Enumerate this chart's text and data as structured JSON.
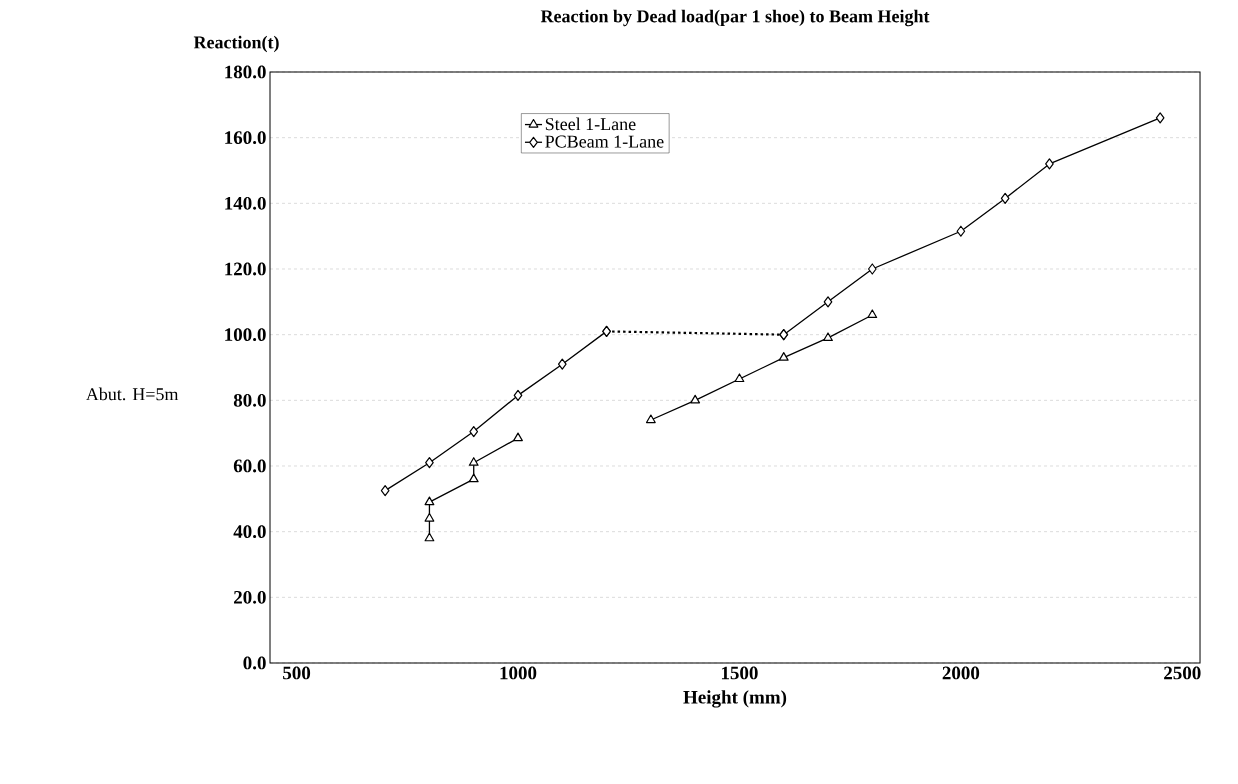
{
  "chart_data": {
    "type": "line",
    "title": "Reaction by Dead load(par 1 shoe) to Beam Height",
    "xlabel": "Height (mm)",
    "ylabel": "Reaction(t)",
    "annotations": [
      "Abut. H=5m"
    ],
    "series": [
      {
        "type": "line",
        "color": "#000000",
        "marker": "diamond",
        "line_style": "dotted",
        "x": [
          1200,
          1600
        ],
        "values": [
          101,
          100
        ]
      },
      {
        "name": "Steel 1-Lane",
        "color": "#000000",
        "marker": "triangle",
        "x": [
          800,
          800,
          800,
          900,
          900,
          1000,
          1150,
          1300,
          1400,
          1500,
          1600,
          1700,
          1800
        ],
        "values": [
          38,
          44,
          49,
          56,
          61,
          68.5,
          null,
          74,
          80,
          86.5,
          93,
          99,
          106
        ]
      },
      {
        "name": "PCBeam 1-Lane",
        "color": "#000000",
        "marker": "diamond",
        "x": [
          700,
          800,
          900,
          1000,
          1100,
          1200,
          1400,
          1600,
          1700,
          1800,
          2000,
          2100,
          2200,
          2450
        ],
        "values": [
          52.5,
          61,
          70.5,
          81.5,
          91,
          101,
          null,
          100,
          110,
          120,
          131.5,
          141.5,
          152,
          166
        ]
      }
    ],
    "xlim": [
      440,
      2540
    ],
    "xticks": [
      500,
      1000,
      1500,
      2000,
      2500
    ],
    "ylim": [
      0,
      180
    ],
    "yticks": [
      {
        "value": 0,
        "label": "0.0"
      },
      {
        "value": 20,
        "label": "20.0"
      },
      {
        "value": 40,
        "label": "40.0"
      },
      {
        "value": 60,
        "label": "60.0"
      },
      {
        "value": 80,
        "label": "80.0"
      },
      {
        "value": 100,
        "label": "100.0"
      },
      {
        "value": 120,
        "label": "120.0"
      },
      {
        "value": 140,
        "label": "140.0"
      },
      {
        "value": 160,
        "label": "160.0"
      },
      {
        "value": 180,
        "label": "180.0"
      }
    ],
    "grid": "y",
    "legend": "top"
  }
}
